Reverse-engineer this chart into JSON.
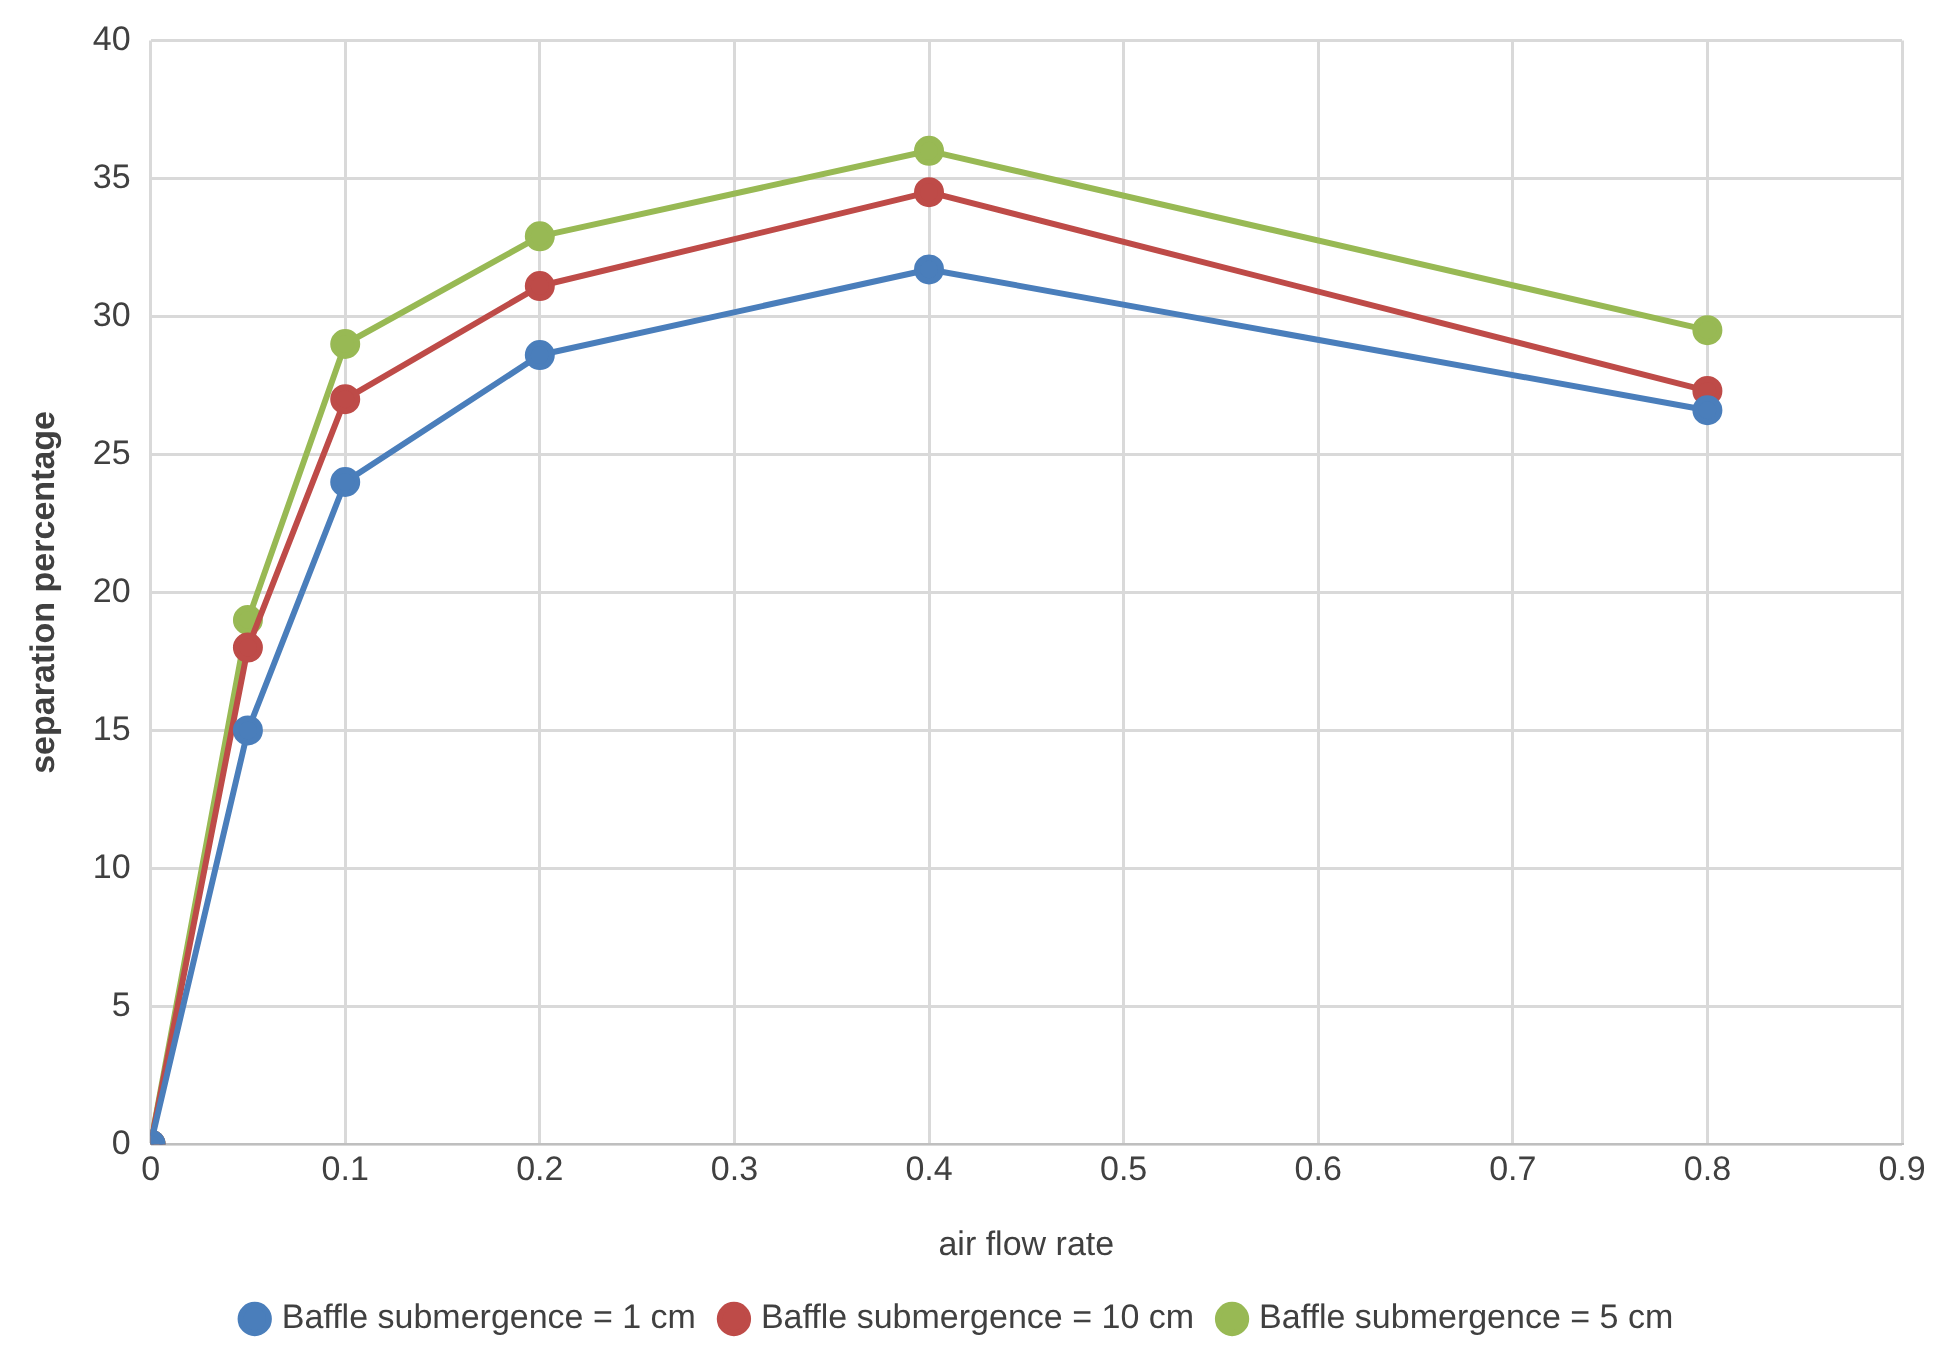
{
  "chart_data": {
    "type": "line",
    "xlabel": "air flow rate",
    "ylabel": "separation percentage",
    "x": [
      0,
      0.05,
      0.1,
      0.2,
      0.4,
      0.8
    ],
    "series": [
      {
        "name": "Baffle submergence = 1 cm",
        "color": "#4a7ebb",
        "values": [
          0,
          15,
          24,
          28.6,
          31.7,
          26.6
        ]
      },
      {
        "name": "Baffle submergence = 10 cm",
        "color": "#be4b48",
        "values": [
          0,
          18,
          27,
          31.1,
          34.5,
          27.3
        ]
      },
      {
        "name": "Baffle submergence = 5 cm",
        "color": "#98b954",
        "values": [
          0,
          19,
          29,
          32.9,
          36,
          29.5
        ]
      }
    ],
    "xlim": [
      0,
      0.9
    ],
    "xticks": [
      0,
      0.1,
      0.2,
      0.3,
      0.4,
      0.5,
      0.6,
      0.7,
      0.8,
      0.9
    ],
    "ylim": [
      0,
      40
    ],
    "yticks": [
      0,
      5,
      10,
      15,
      20,
      25,
      30,
      35,
      40
    ],
    "grid": true,
    "legend": "bottom",
    "marker": "circle",
    "line_style": "solid"
  }
}
